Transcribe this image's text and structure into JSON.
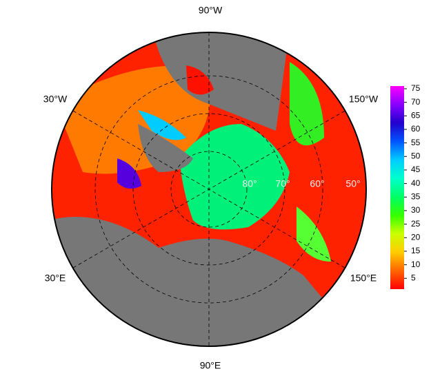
{
  "map": {
    "labels": {
      "lon_90w": "90°W",
      "lon_30w": "30°W",
      "lon_150w": "150°W",
      "lon_30e": "30°E",
      "lon_150e": "150°E",
      "lon_90e": "90°E"
    },
    "lat_labels": [
      "80°",
      "70°",
      "60°",
      "50°"
    ],
    "colorbar": {
      "range": [
        1,
        76
      ],
      "ticks": [
        5,
        10,
        15,
        20,
        25,
        30,
        35,
        40,
        45,
        50,
        55,
        60,
        65,
        70,
        75
      ],
      "colors": [
        "#ff0000",
        "#ff6600",
        "#ffcc00",
        "#ccff00",
        "#33ff00",
        "#00ff66",
        "#00ffcc",
        "#00ccff",
        "#0055ff",
        "#2200cc",
        "#8800ff",
        "#ff00ff"
      ]
    }
  }
}
